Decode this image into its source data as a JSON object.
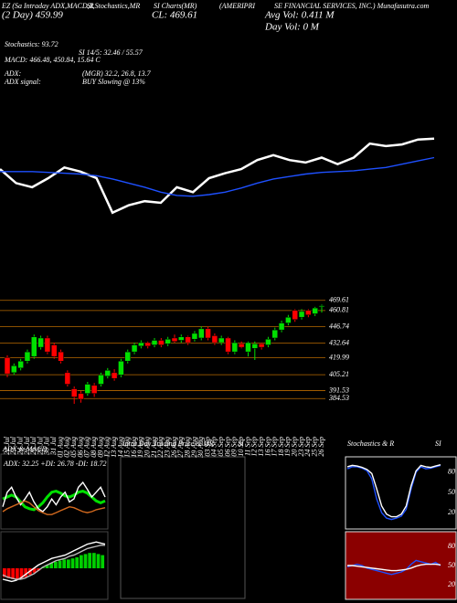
{
  "header": {
    "items": [
      "EZ (Sa Intraday ADX,MACD,R",
      "SI,Stochastics,MR",
      "SI Charts(MR)",
      "(AMERIPRI",
      "SE FINANCIAL SERVICES, INC.) Munafasutra.com",
      "(2 Day) 459.99",
      "CL: 469.61",
      "Avg Vol: 0.411 M",
      "Day Vol: 0  M",
      "Stochastics: 93.72",
      "SI 14/5: 32.46 / 55.57",
      "MACD: 466.48, 450.84, 15.64  C",
      "ADX:",
      "(MGR) 32.2, 26.8, 13.7",
      "ADX  signal:",
      "BUY Slowing @ 13%"
    ]
  },
  "chart_data": [
    {
      "type": "line",
      "ylim": [
        0,
        100
      ],
      "series": [
        {
          "color": "#ffffff",
          "values": [
            61,
            44,
            39,
            50,
            63,
            58,
            50,
            8,
            17,
            22,
            20,
            39,
            33,
            50,
            56,
            61,
            72,
            78,
            72,
            69,
            75,
            67,
            75,
            92,
            89,
            91,
            97,
            98
          ]
        },
        {
          "color": "#1e50ff",
          "values": [
            58,
            58,
            58,
            57,
            56,
            55,
            53,
            49,
            44,
            39,
            33,
            29,
            28,
            30,
            33,
            38,
            44,
            49,
            52,
            55,
            57,
            58,
            59,
            61,
            63,
            67,
            71,
            75
          ]
        }
      ]
    },
    {
      "type": "candlestick",
      "up_color": "#00e000",
      "down_color": "#ff0000",
      "tick_color": "#b86a00",
      "categories": [
        "22 Jul",
        "23 Jul",
        "24 Jul",
        "25 Jul",
        "26 Jul",
        "29 Jul",
        "30 Jul",
        "31 Jul",
        "01 Aug",
        "02 Aug",
        "05 Aug",
        "06 Aug",
        "07 Aug",
        "08 Aug",
        "09 Aug",
        "12 Aug",
        "13 Aug",
        "14 Aug",
        "15 Aug",
        "16 Aug",
        "19 Aug",
        "20 Aug",
        "21 Aug",
        "22 Aug",
        "23 Aug",
        "26 Aug",
        "27 Aug",
        "28 Aug",
        "29 Aug",
        "30 Aug",
        "03 Sep",
        "04 Sep",
        "05 Sep",
        "06 Sep",
        "09 Sep",
        "10 Sep",
        "11 Sep",
        "12 Sep",
        "13 Sep",
        "16 Sep",
        "17 Sep",
        "18 Sep",
        "19 Sep",
        "20 Sep",
        "23 Sep",
        "24 Sep",
        "25 Sep",
        "26 Sep"
      ],
      "open": [
        420,
        407,
        411,
        417,
        421,
        429,
        437,
        431,
        425,
        407,
        393,
        389,
        389,
        396,
        397,
        404,
        407,
        405,
        417,
        425,
        430,
        433,
        431,
        435,
        432,
        437,
        435,
        438,
        436,
        437,
        445,
        439,
        433,
        437,
        425,
        432,
        425,
        428,
        432,
        431,
        437,
        444,
        450,
        461,
        455,
        461,
        458,
        464
      ],
      "high": [
        422,
        415,
        419,
        427,
        440,
        439,
        439,
        433,
        427,
        409,
        395,
        391,
        399,
        398,
        407,
        411,
        410,
        419,
        427,
        433,
        435,
        434,
        437,
        437,
        438,
        440,
        440,
        439,
        443,
        447,
        447,
        441,
        439,
        438,
        435,
        434,
        434,
        434,
        433,
        438,
        446,
        452,
        457,
        462,
        462,
        462,
        464,
        466
      ],
      "low": [
        403,
        405,
        409,
        415,
        419,
        427,
        423,
        419,
        415,
        395,
        380,
        381,
        387,
        386,
        395,
        402,
        400,
        403,
        415,
        423,
        428,
        428,
        429,
        429,
        430,
        433,
        433,
        431,
        434,
        435,
        435,
        431,
        431,
        423,
        423,
        428,
        421,
        418,
        427,
        429,
        435,
        442,
        448,
        451,
        453,
        455,
        456,
        459
      ],
      "close": [
        406,
        413,
        417,
        425,
        438,
        437,
        425,
        421,
        417,
        397,
        386,
        384,
        397,
        389,
        405,
        409,
        402,
        417,
        425,
        431,
        433,
        430,
        435,
        431,
        436,
        434,
        438,
        433,
        441,
        445,
        437,
        433,
        437,
        425,
        433,
        429,
        433,
        432,
        429,
        436,
        444,
        450,
        455,
        453,
        460,
        457,
        463,
        465
      ],
      "ylim": [
        380,
        471
      ],
      "yticks": [
        469.61,
        460.81,
        446.74,
        432.64,
        419.99,
        405.21,
        391.53,
        384.53
      ]
    },
    {
      "type": "line",
      "title": "ADX & MACD",
      "subtitle": "ADX: 32.25  +DI: 26.78  -DI: 18.72",
      "ylim": [
        0,
        60
      ],
      "series": [
        {
          "color": "#00e000",
          "values": [
            28,
            30,
            32,
            30,
            25,
            20,
            18,
            17,
            20,
            24,
            30,
            35,
            36,
            34,
            31,
            30,
            32,
            35,
            36,
            34,
            30,
            26,
            24,
            26
          ]
        },
        {
          "color": "#ffffff",
          "values": [
            20,
            35,
            40,
            30,
            22,
            28,
            35,
            25,
            18,
            15,
            20,
            28,
            22,
            30,
            35,
            25,
            28,
            40,
            45,
            38,
            30,
            35,
            40,
            30
          ]
        },
        {
          "color": "#d2691e",
          "values": [
            15,
            18,
            20,
            22,
            24,
            26,
            24,
            20,
            16,
            14,
            12,
            12,
            14,
            16,
            18,
            20,
            19,
            17,
            15,
            14,
            15,
            17,
            18,
            19
          ]
        }
      ]
    },
    {
      "type": "bar",
      "positive_color": "#00d000",
      "negative_color": "#ff0000",
      "ylim": [
        -25,
        30
      ],
      "values": [
        -8,
        -9,
        -10,
        -10,
        -9,
        -8,
        -6,
        -4,
        -2,
        1,
        3,
        5,
        6,
        7,
        8,
        8,
        9,
        10,
        12,
        13,
        14,
        14,
        13,
        12
      ],
      "series": [
        {
          "color": "#ffffff",
          "values": [
            -10,
            -11,
            -12,
            -11,
            -9,
            -6,
            -3,
            0,
            3,
            5,
            7,
            9,
            10,
            11,
            12,
            14,
            16,
            18,
            20,
            22,
            23,
            24,
            23,
            22
          ]
        },
        {
          "color": "#bbbbbb",
          "values": [
            -6,
            -8,
            -9,
            -10,
            -10,
            -9,
            -7,
            -5,
            -2,
            1,
            3,
            5,
            7,
            8,
            9,
            11,
            12,
            14,
            16,
            18,
            19,
            20,
            21,
            21
          ]
        }
      ]
    },
    {
      "type": "line",
      "title": "Intra Day Trading Price & MR",
      "title2": "SI",
      "series": []
    },
    {
      "type": "line",
      "title": "Stochastics & R",
      "title2": "SI",
      "ylim": [
        0,
        100
      ],
      "yticks": [
        80,
        50,
        20
      ],
      "series": [
        {
          "color": "#1e50ff",
          "values": [
            85,
            88,
            88,
            86,
            82,
            70,
            40,
            20,
            12,
            10,
            12,
            15,
            25,
            55,
            80,
            88,
            85,
            86,
            88,
            90
          ]
        },
        {
          "color": "#ffffff",
          "values": [
            88,
            90,
            89,
            87,
            84,
            78,
            55,
            30,
            18,
            14,
            14,
            18,
            30,
            60,
            82,
            90,
            88,
            87,
            89,
            91
          ]
        }
      ]
    },
    {
      "type": "line",
      "background": "#8b0000",
      "ylim": [
        0,
        100
      ],
      "yticks": [
        80,
        50,
        20
      ],
      "series": [
        {
          "color": "#1e50ff",
          "values": [
            48,
            50,
            52,
            50,
            46,
            44,
            42,
            40,
            38,
            36,
            38,
            40,
            44,
            52,
            58,
            56,
            54,
            52,
            55,
            50
          ]
        },
        {
          "color": "#ffffff",
          "values": [
            50,
            50,
            49,
            48,
            47,
            46,
            45,
            44,
            43,
            42,
            42,
            43,
            44,
            46,
            49,
            51,
            52,
            52,
            52,
            51
          ]
        }
      ]
    }
  ]
}
